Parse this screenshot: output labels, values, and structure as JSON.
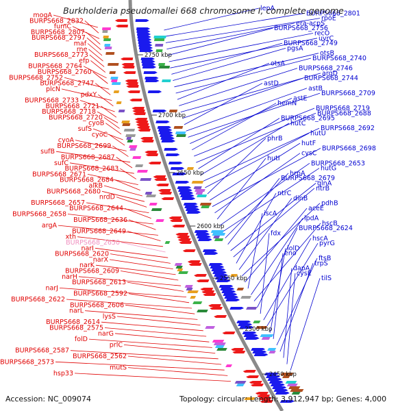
{
  "title": "Burkholderia pseudomallei 668 chromosome I, complete genome",
  "footer": {
    "accession": "Accession: NC_009074",
    "summary": "Topology: circular; Length: 3,912,947 bp; Genes: 4,000"
  },
  "colors": {
    "left_label": "#e00000",
    "right_label": "#0000d0",
    "muted_label": "#f090c0",
    "backbone": "#8a8a8a",
    "forward_strand": "#1a1aee",
    "reverse_strand": "#ee1a1a",
    "tick": "#208020"
  },
  "scale_ticks": [
    "2750 kbp",
    "2700 kbp",
    "2650 kbp",
    "2600 kbp",
    "2550 kbp",
    "2500 kbp",
    "2450 kbp"
  ],
  "left_labels": [
    {
      "text": "mogA"
    },
    {
      "text": "BURPS668_2832"
    },
    {
      "text": "fumC"
    },
    {
      "text": "BURPS668_2807"
    },
    {
      "text": "BURPS668_2797"
    },
    {
      "text": "maf"
    },
    {
      "text": "rne"
    },
    {
      "text": "BURPS668_2773"
    },
    {
      "text": "efp"
    },
    {
      "text": "BURPS668_2764"
    },
    {
      "text": "BURPS668_2760"
    },
    {
      "text": "BURPS668_2752"
    },
    {
      "text": "BURPS668_2747"
    },
    {
      "text": "plcN"
    },
    {
      "text": "pdxY"
    },
    {
      "text": "BURPS668_2733"
    },
    {
      "text": "BURPS668_2721"
    },
    {
      "text": "BURPS668_2718"
    },
    {
      "text": "BURPS668_2720"
    },
    {
      "text": "cyoB"
    },
    {
      "text": "sufS"
    },
    {
      "text": "cyoC"
    },
    {
      "text": "cyoA"
    },
    {
      "text": "BURPS668_2699"
    },
    {
      "text": "sufB"
    },
    {
      "text": "BURPS668_2687"
    },
    {
      "text": "sufC"
    },
    {
      "text": "BURPS668_2683"
    },
    {
      "text": "BURPS668_2671"
    },
    {
      "text": "BURPS668_2684"
    },
    {
      "text": "alkB"
    },
    {
      "text": "BURPS668_2680"
    },
    {
      "text": "nrdD"
    },
    {
      "text": "BURPS668_2657"
    },
    {
      "text": "BURPS668_2644"
    },
    {
      "text": "BURPS668_2658"
    },
    {
      "text": "BURPS668_2636"
    },
    {
      "text": "argA"
    },
    {
      "text": "BURPS668_2649"
    },
    {
      "text": "xth"
    },
    {
      "text": "BURPS668_2650",
      "muted": true
    },
    {
      "text": "narI"
    },
    {
      "text": "BURPS668_2620"
    },
    {
      "text": "narX"
    },
    {
      "text": "narK"
    },
    {
      "text": "BURPS668_2609"
    },
    {
      "text": "narH"
    },
    {
      "text": "BURPS668_2613"
    },
    {
      "text": "narJ"
    },
    {
      "text": "BURPS668_2592"
    },
    {
      "text": "BURPS668_2622"
    },
    {
      "text": "BURPS668_2606"
    },
    {
      "text": "narL"
    },
    {
      "text": "lysS"
    },
    {
      "text": "BURPS668_2614"
    },
    {
      "text": "BURPS668_2575"
    },
    {
      "text": "narG"
    },
    {
      "text": "folD"
    },
    {
      "text": "prlC"
    },
    {
      "text": "BURPS668_2587"
    },
    {
      "text": "BURPS668_2562"
    },
    {
      "text": "BURPS668_2573"
    },
    {
      "text": "mutS"
    },
    {
      "text": "hsp33"
    }
  ],
  "right_labels": [
    {
      "text": "lepA"
    },
    {
      "text": "BURPS668_2801"
    },
    {
      "text": "rpoE"
    },
    {
      "text": "era-acpS"
    },
    {
      "text": "BURPS668_2756"
    },
    {
      "text": "recO"
    },
    {
      "text": "uvrC"
    },
    {
      "text": "BURPS668_2749"
    },
    {
      "text": "pgsA"
    },
    {
      "text": "otsB"
    },
    {
      "text": "BURPS668_2740"
    },
    {
      "text": "otsA"
    },
    {
      "text": "BURPS668_2746"
    },
    {
      "text": "argD"
    },
    {
      "text": "BURPS668_2744"
    },
    {
      "text": "astD"
    },
    {
      "text": "astB"
    },
    {
      "text": "BURPS668_2709"
    },
    {
      "text": "astE"
    },
    {
      "text": "hemN"
    },
    {
      "text": "BURPS668_2719"
    },
    {
      "text": "BURPS668_2688"
    },
    {
      "text": "BURPS668_2695"
    },
    {
      "text": "hutC"
    },
    {
      "text": "BURPS668_2692"
    },
    {
      "text": "hutU"
    },
    {
      "text": "phrB"
    },
    {
      "text": "hutF"
    },
    {
      "text": "BURPS668_2698"
    },
    {
      "text": "cysC"
    },
    {
      "text": "hutI"
    },
    {
      "text": "BURPS668_2653"
    },
    {
      "text": "hutG"
    },
    {
      "text": "hrpA"
    },
    {
      "text": "BURPS668_2679"
    },
    {
      "text": "glnA"
    },
    {
      "text": "ntrB"
    },
    {
      "text": "ntrC"
    },
    {
      "text": "dinB"
    },
    {
      "text": "pdhB"
    },
    {
      "text": "aceE"
    },
    {
      "text": "iscA"
    },
    {
      "text": "lpdA"
    },
    {
      "text": "hscB"
    },
    {
      "text": "BURPS668_2624"
    },
    {
      "text": "fdx"
    },
    {
      "text": "hscA"
    },
    {
      "text": "pyrG"
    },
    {
      "text": "lolD"
    },
    {
      "text": "eno"
    },
    {
      "text": "ftsB"
    },
    {
      "text": "trpS"
    },
    {
      "text": "dapA"
    },
    {
      "text": "cysE"
    },
    {
      "text": "tilS"
    }
  ]
}
